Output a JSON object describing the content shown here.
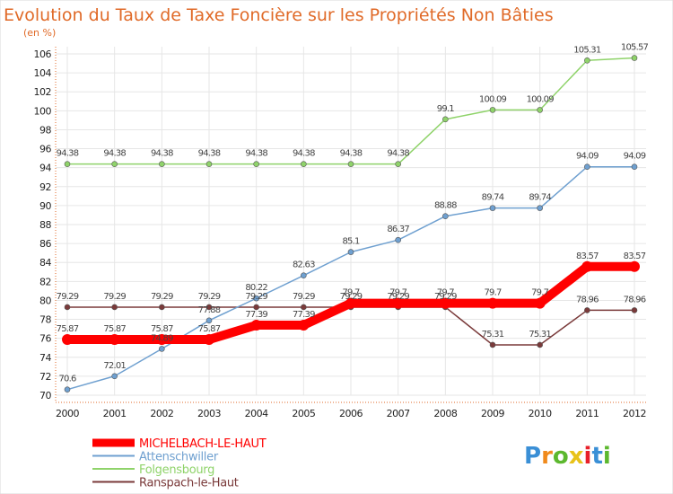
{
  "chart_data": {
    "type": "line",
    "title": "Evolution du Taux de Taxe Foncière sur les Propriétés Non Bâties",
    "ylabel": "(en %)",
    "xlabel": "",
    "categories": [
      "2000",
      "2001",
      "2002",
      "2003",
      "2004",
      "2005",
      "2006",
      "2007",
      "2008",
      "2009",
      "2010",
      "2011",
      "2012"
    ],
    "ylim": [
      70,
      106
    ],
    "yticks": [
      70,
      72,
      74,
      76,
      78,
      80,
      82,
      84,
      86,
      88,
      90,
      92,
      94,
      96,
      98,
      100,
      102,
      104,
      106
    ],
    "grid": true,
    "legend_position": "bottom-left",
    "series": [
      {
        "name": "MICHELBACH-LE-HAUT",
        "color": "#ff0000",
        "values": [
          75.87,
          75.87,
          75.87,
          75.87,
          77.39,
          77.39,
          79.7,
          79.7,
          79.7,
          79.7,
          79.7,
          83.57,
          83.57
        ],
        "labels": [
          "75.87",
          "75.87",
          "75.87",
          "75.87",
          "77.39",
          "77.39",
          "79.7",
          "79.7",
          "79.7",
          "79.7",
          "79.7",
          "83.57",
          "83.57"
        ]
      },
      {
        "name": "Attenschwiller",
        "color": "#6fa0d0",
        "values": [
          70.6,
          72.01,
          74.89,
          77.88,
          80.22,
          82.63,
          85.1,
          86.37,
          88.88,
          89.74,
          89.74,
          94.09,
          94.09
        ],
        "labels": [
          "70.6",
          "72.01",
          "74.89",
          "77.88",
          "80.22",
          "82.63",
          "85.1",
          "86.37",
          "88.88",
          "89.74",
          "89.74",
          "94.09",
          "94.09"
        ]
      },
      {
        "name": "Folgensbourg",
        "color": "#8fd36a",
        "values": [
          94.38,
          94.38,
          94.38,
          94.38,
          94.38,
          94.38,
          94.38,
          94.38,
          99.1,
          100.09,
          100.09,
          105.31,
          105.57
        ],
        "labels": [
          "94.38",
          "94.38",
          "94.38",
          "94.38",
          "94.38",
          "94.38",
          "94.38",
          "94.38",
          "99.1",
          "100.09",
          "100.09",
          "105.31",
          "105.57"
        ]
      },
      {
        "name": "Ranspach-le-Haut",
        "color": "#7a3a3a",
        "values": [
          79.29,
          79.29,
          79.29,
          79.29,
          79.29,
          79.29,
          79.29,
          79.29,
          79.29,
          75.31,
          75.31,
          78.96,
          78.96
        ],
        "labels": [
          "79.29",
          "79.29",
          "79.29",
          "79.29",
          "79.29",
          "79.29",
          "79.29",
          "79.29",
          "79.29",
          "75.31",
          "75.31",
          "78.96",
          "78.96"
        ]
      }
    ]
  },
  "branding": {
    "logo_letters": [
      "P",
      "r",
      "o",
      "x",
      "i",
      "t",
      "i"
    ],
    "logo_colors": [
      "#3a8fd6",
      "#f08a1c",
      "#5cb82e",
      "#e8c21a",
      "#e8202a",
      "#3a8fd6",
      "#5cb82e"
    ]
  }
}
